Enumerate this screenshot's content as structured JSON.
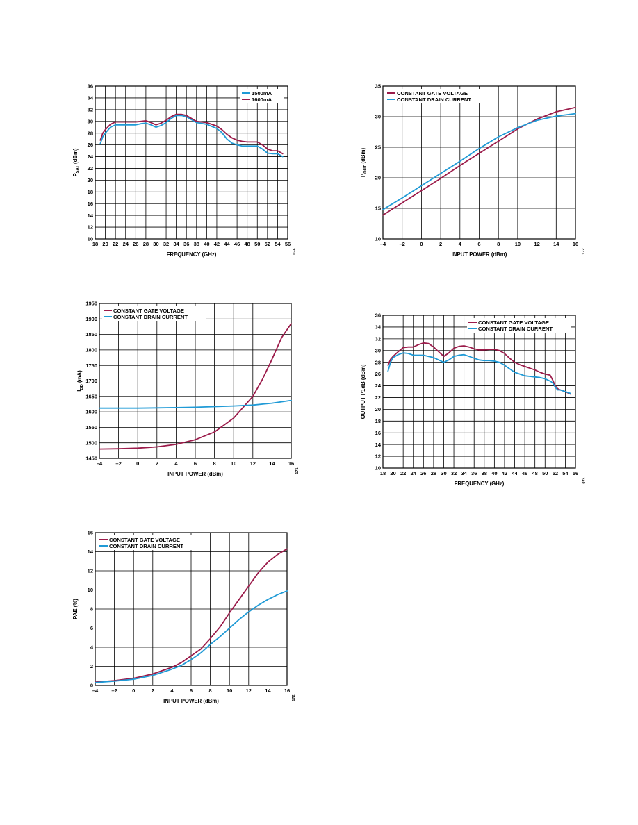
{
  "colors": {
    "maroon": "#9b1b4a",
    "cyan": "#1f9ad6",
    "grid": "#000000"
  },
  "charts": [
    {
      "id": "psat",
      "type": "line",
      "ylabel_main": "P",
      "ylabel_sub": "SAT",
      "ylabel_tail": " (dBm)",
      "xlabel": "FREQUENCY (GHz)",
      "xlim": [
        18,
        56
      ],
      "ylim": [
        10,
        36
      ],
      "xticks": [
        "18",
        "20",
        "22",
        "24",
        "26",
        "28",
        "30",
        "32",
        "34",
        "36",
        "38",
        "40",
        "42",
        "44",
        "46",
        "48",
        "50",
        "52",
        "54",
        "56"
      ],
      "yticks": [
        "10",
        "12",
        "14",
        "16",
        "18",
        "20",
        "22",
        "24",
        "26",
        "28",
        "30",
        "32",
        "34",
        "36"
      ],
      "xtick_values": [
        18,
        20,
        22,
        24,
        26,
        28,
        30,
        32,
        34,
        36,
        38,
        40,
        42,
        44,
        46,
        48,
        50,
        52,
        54,
        56
      ],
      "ytick_values": [
        10,
        12,
        14,
        16,
        18,
        20,
        22,
        24,
        26,
        28,
        30,
        32,
        34,
        36
      ],
      "legend_position": "top-right",
      "side_code": "074",
      "series": [
        {
          "name": "1500mA",
          "color": "cyan",
          "x": [
            19,
            19.5,
            20,
            21,
            22,
            24,
            26,
            27,
            28,
            29,
            30,
            31,
            32,
            33,
            34,
            35,
            36,
            37,
            38,
            40,
            42,
            43,
            44,
            45,
            46,
            47,
            48,
            50,
            51,
            52,
            53,
            54,
            55
          ],
          "y": [
            26.2,
            27.4,
            28.0,
            29.0,
            29.4,
            29.4,
            29.4,
            29.6,
            29.7,
            29.4,
            29.0,
            29.3,
            29.8,
            30.5,
            31.0,
            31.0,
            30.8,
            30.3,
            29.8,
            29.5,
            28.8,
            28.1,
            27.0,
            26.3,
            26.0,
            25.8,
            25.8,
            25.8,
            25.3,
            24.6,
            24.5,
            24.5,
            24.0
          ]
        },
        {
          "name": "1600mA",
          "color": "maroon",
          "x": [
            19,
            19.5,
            20,
            21,
            22,
            24,
            26,
            27,
            28,
            29,
            30,
            31,
            32,
            33,
            34,
            35,
            36,
            37,
            38,
            40,
            42,
            43,
            44,
            45,
            46,
            47,
            48,
            50,
            51,
            52,
            53,
            54,
            55
          ],
          "y": [
            26.8,
            28.0,
            28.6,
            29.5,
            29.9,
            29.9,
            29.9,
            30.0,
            30.1,
            29.8,
            29.4,
            29.7,
            30.2,
            30.8,
            31.2,
            31.2,
            31.0,
            30.5,
            30.0,
            29.8,
            29.2,
            28.6,
            27.8,
            27.2,
            26.8,
            26.6,
            26.5,
            26.5,
            26.0,
            25.3,
            25.0,
            25.0,
            24.5
          ]
        }
      ]
    },
    {
      "id": "pout",
      "type": "line",
      "ylabel_main": "P",
      "ylabel_sub": "OUT",
      "ylabel_tail": " (dBm)",
      "xlabel": "INPUT POWER (dBm)",
      "xlim": [
        -4,
        16
      ],
      "ylim": [
        10,
        35
      ],
      "xticks": [
        "–4",
        "–2",
        "0",
        "2",
        "4",
        "6",
        "8",
        "10",
        "12",
        "14",
        "16"
      ],
      "yticks": [
        "10",
        "15",
        "20",
        "25",
        "30",
        "35"
      ],
      "xtick_values": [
        -4,
        -2,
        0,
        2,
        4,
        6,
        8,
        10,
        12,
        14,
        16
      ],
      "ytick_values": [
        10,
        15,
        20,
        25,
        30,
        35
      ],
      "legend_position": "top-left",
      "side_code": "172",
      "series": [
        {
          "name": "CONSTANT GATE VOLTAGE",
          "color": "maroon",
          "x": [
            -4,
            -2,
            0,
            2,
            4,
            6,
            8,
            10,
            12,
            14,
            16
          ],
          "y": [
            13.9,
            15.9,
            17.9,
            19.9,
            22.0,
            24.0,
            26.0,
            28.0,
            29.6,
            30.8,
            31.5
          ]
        },
        {
          "name": "CONSTANT DRAIN CURRENT",
          "color": "cyan",
          "x": [
            -4,
            -2,
            0,
            2,
            4,
            6,
            8,
            10,
            12,
            14,
            16
          ],
          "y": [
            14.8,
            16.7,
            18.7,
            20.7,
            22.7,
            24.8,
            26.7,
            28.2,
            29.4,
            30.1,
            30.5
          ]
        }
      ]
    },
    {
      "id": "idd",
      "type": "line",
      "ylabel_main": "I",
      "ylabel_sub": "DD",
      "ylabel_tail": " (mA)",
      "xlabel": "INPUT POWER (dBm)",
      "xlim": [
        -4,
        16
      ],
      "ylim": [
        1450,
        1950
      ],
      "xticks": [
        "–4",
        "–2",
        "0",
        "2",
        "4",
        "6",
        "8",
        "10",
        "12",
        "14",
        "16"
      ],
      "yticks": [
        "1450",
        "1500",
        "1550",
        "1600",
        "1650",
        "1700",
        "1750",
        "1800",
        "1850",
        "1900",
        "1950"
      ],
      "xtick_values": [
        -4,
        -2,
        0,
        2,
        4,
        6,
        8,
        10,
        12,
        14,
        16
      ],
      "ytick_values": [
        1450,
        1500,
        1550,
        1600,
        1650,
        1700,
        1750,
        1800,
        1850,
        1900,
        1950
      ],
      "legend_position": "top-left",
      "side_code": "171",
      "series": [
        {
          "name": "CONSTANT GATE VOLTAGE",
          "color": "maroon",
          "x": [
            -4,
            -2,
            0,
            2,
            4,
            6,
            8,
            10,
            12,
            13,
            14,
            15,
            16
          ],
          "y": [
            1480,
            1481,
            1483,
            1487,
            1495,
            1510,
            1535,
            1580,
            1650,
            1705,
            1770,
            1840,
            1885
          ]
        },
        {
          "name": "CONSTANT DRAIN CURRENT",
          "color": "cyan",
          "x": [
            -4,
            -2,
            0,
            2,
            4,
            6,
            8,
            10,
            12,
            14,
            16
          ],
          "y": [
            1612,
            1612,
            1612,
            1613,
            1614,
            1615,
            1617,
            1619,
            1622,
            1628,
            1637
          ]
        }
      ]
    },
    {
      "id": "p1db",
      "type": "line",
      "ylabel_main": "OUTPUT P1dB (dBm)",
      "ylabel_sub": "",
      "ylabel_tail": "",
      "xlabel": "FREQUENCY (GHz)",
      "xlim": [
        18,
        56
      ],
      "ylim": [
        10,
        36
      ],
      "xticks": [
        "18",
        "20",
        "22",
        "24",
        "26",
        "28",
        "30",
        "32",
        "34",
        "36",
        "38",
        "40",
        "42",
        "44",
        "46",
        "48",
        "50",
        "52",
        "54",
        "56"
      ],
      "yticks": [
        "10",
        "12",
        "14",
        "16",
        "18",
        "20",
        "22",
        "24",
        "26",
        "28",
        "30",
        "32",
        "34",
        "36"
      ],
      "xtick_values": [
        18,
        20,
        22,
        24,
        26,
        28,
        30,
        32,
        34,
        36,
        38,
        40,
        42,
        44,
        46,
        48,
        50,
        52,
        54,
        56
      ],
      "ytick_values": [
        10,
        12,
        14,
        16,
        18,
        20,
        22,
        24,
        26,
        28,
        30,
        32,
        34,
        36
      ],
      "legend_position": "top-right",
      "side_code": "074",
      "series": [
        {
          "name": "CONSTANT GATE VOLTAGE",
          "color": "maroon",
          "x": [
            19,
            19.5,
            20,
            21,
            22,
            23,
            24,
            25,
            26,
            27,
            28,
            29,
            30,
            31,
            32,
            33,
            34,
            35,
            36,
            37,
            38,
            39,
            40,
            41,
            42,
            43,
            44,
            45,
            46,
            47,
            48,
            49,
            50,
            51,
            51.5,
            52,
            52.5,
            53,
            54,
            55
          ],
          "y": [
            27.5,
            28.5,
            29.0,
            29.8,
            30.5,
            30.6,
            30.6,
            31.0,
            31.3,
            31.2,
            30.6,
            29.8,
            29.0,
            29.6,
            30.4,
            30.7,
            30.8,
            30.6,
            30.3,
            30.1,
            30.1,
            30.2,
            30.2,
            30.0,
            29.5,
            28.7,
            28.0,
            27.6,
            27.3,
            27.0,
            26.7,
            26.3,
            26.0,
            25.8,
            25.0,
            24.0,
            23.5,
            23.3,
            23.0,
            22.6
          ]
        },
        {
          "name": "CONSTANT DRAIN CURRENT",
          "color": "cyan",
          "x": [
            19,
            19.5,
            20,
            21,
            22,
            23,
            24,
            25,
            26,
            27,
            28,
            29,
            30,
            31,
            32,
            33,
            34,
            35,
            36,
            37,
            38,
            39,
            40,
            41,
            42,
            43,
            44,
            45,
            46,
            47,
            48,
            49,
            50,
            51,
            51.5,
            52,
            52.5,
            53,
            54,
            55
          ],
          "y": [
            26.5,
            28.0,
            28.8,
            29.3,
            29.6,
            29.5,
            29.2,
            29.2,
            29.2,
            29.0,
            28.8,
            28.4,
            28.0,
            28.4,
            29.0,
            29.2,
            29.3,
            29.0,
            28.7,
            28.4,
            28.3,
            28.3,
            28.2,
            28.0,
            27.5,
            26.9,
            26.3,
            26.0,
            25.7,
            25.6,
            25.5,
            25.4,
            25.2,
            24.8,
            24.5,
            23.8,
            23.3,
            23.3,
            23.0,
            22.7
          ]
        }
      ]
    },
    {
      "id": "pae",
      "type": "line",
      "ylabel_main": "PAE (%)",
      "ylabel_sub": "",
      "ylabel_tail": "",
      "xlabel": "INPUT POWER (dBm)",
      "xlim": [
        -4,
        16
      ],
      "ylim": [
        0,
        16
      ],
      "xticks": [
        "–4",
        "–2",
        "0",
        "2",
        "4",
        "6",
        "8",
        "10",
        "12",
        "14",
        "16"
      ],
      "yticks": [
        "0",
        "2",
        "4",
        "6",
        "8",
        "10",
        "12",
        "14",
        "16"
      ],
      "xtick_values": [
        -4,
        -2,
        0,
        2,
        4,
        6,
        8,
        10,
        12,
        14,
        16
      ],
      "ytick_values": [
        0,
        2,
        4,
        6,
        8,
        10,
        12,
        14,
        16
      ],
      "legend_position": "top-left",
      "side_code": "172",
      "series": [
        {
          "name": "CONSTANT GATE VOLTAGE",
          "color": "maroon",
          "x": [
            -4,
            -2,
            0,
            2,
            4,
            5,
            6,
            7,
            8,
            9,
            10,
            11,
            12,
            13,
            14,
            15,
            16
          ],
          "y": [
            0.35,
            0.5,
            0.75,
            1.2,
            1.9,
            2.4,
            3.1,
            3.8,
            4.9,
            6.1,
            7.6,
            9.0,
            10.4,
            11.8,
            12.9,
            13.7,
            14.3
          ]
        },
        {
          "name": "CONSTANT DRAIN CURRENT",
          "color": "cyan",
          "x": [
            -4,
            -2,
            0,
            2,
            4,
            5,
            6,
            7,
            8,
            9,
            10,
            11,
            12,
            13,
            14,
            15,
            16
          ],
          "y": [
            0.3,
            0.45,
            0.65,
            1.05,
            1.7,
            2.1,
            2.7,
            3.4,
            4.3,
            5.1,
            6.0,
            6.9,
            7.7,
            8.4,
            9.0,
            9.5,
            9.9
          ]
        }
      ]
    }
  ]
}
